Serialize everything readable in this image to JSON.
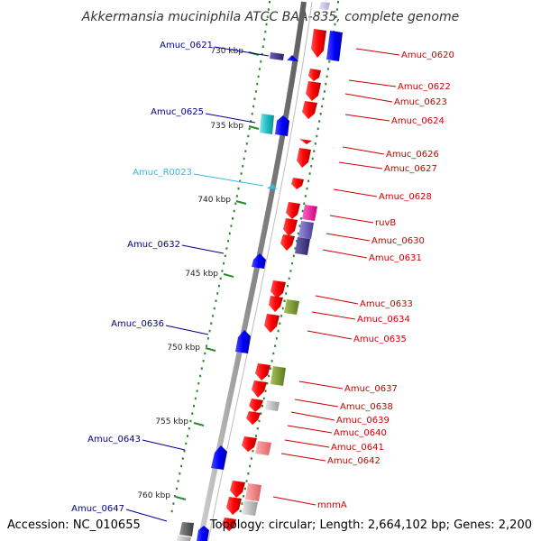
{
  "title": "Akkermansia muciniphila ATCC BAA-835, complete genome",
  "footer": {
    "accession": "Accession: NC_010655",
    "summary": "Topology: circular; Length: 2,664,102 bp; Genes: 2,200"
  },
  "colors": {
    "left_label": "#00008b",
    "right_label": "#cc0000",
    "rna_label": "#33bbdd",
    "tick": "#2a8a2a",
    "backbone": "#8c8c8c"
  },
  "ticks": [
    "730 kbp",
    "735 kbp",
    "740 kbp",
    "745 kbp",
    "750 kbp",
    "755 kbp",
    "760 kbp"
  ],
  "left_labels": [
    "Amuc_0621",
    "Amuc_0625",
    "Amuc_R0023",
    "Amuc_0632",
    "Amuc_0636",
    "Amuc_0643",
    "Amuc_0647"
  ],
  "right_labels": [
    "Amuc_0620",
    "Amuc_0622",
    "Amuc_0623",
    "Amuc_0624",
    "Amuc_0626",
    "Amuc_0627",
    "Amuc_0628",
    "ruvB",
    "Amuc_0630",
    "Amuc_0631",
    "Amuc_0633",
    "Amuc_0634",
    "Amuc_0635",
    "Amuc_0637",
    "Amuc_0638",
    "Amuc_0639",
    "Amuc_0640",
    "Amuc_0641",
    "Amuc_0642",
    "mnmA"
  ]
}
